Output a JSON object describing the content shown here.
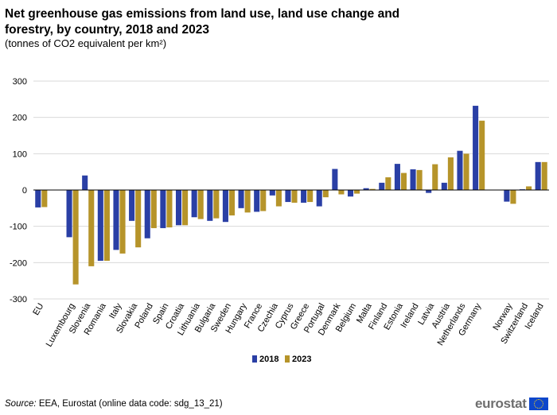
{
  "header": {
    "title": "Net greenhouse gas emissions from land use, land use change and forestry, by country, 2018 and 2023",
    "subtitle": "(tonnes of CO2 equivalent per km²)"
  },
  "footer": {
    "source_label": "Source:",
    "source_text": " EEA, Eurostat (online data code: sdg_13_21)",
    "logo_text": "eurostat"
  },
  "colors": {
    "s2018": "#2a3fa5",
    "s2023": "#b6942a",
    "grid": "#d9d9d9",
    "axis": "#000000"
  },
  "chart_data": {
    "type": "bar",
    "title": "Net greenhouse gas emissions from land use, land use change and forestry, by country, 2018 and 2023",
    "subtitle": "(tonnes of CO2 equivalent per km²)",
    "xlabel": "",
    "ylabel": "",
    "ylim": [
      -300,
      300
    ],
    "yticks": [
      300,
      200,
      100,
      0,
      -100,
      -200,
      -300
    ],
    "grid": true,
    "legend_position": "bottom-center",
    "categories": [
      "EU",
      "",
      "Luxembourg",
      "Slovenia",
      "Romania",
      "Italy",
      "Slovakia",
      "Poland",
      "Spain",
      "Croatia",
      "Lithuania",
      "Bulgaria",
      "Sweden",
      "Hungary",
      "France",
      "Czechia",
      "Cyprus",
      "Greece",
      "Portugal",
      "Denmark",
      "Belgium",
      "Malta",
      "Finland",
      "Estonia",
      "Ireland",
      "Latvia",
      "Austria",
      "Netherlands",
      "Germany",
      "",
      "Norway",
      "Switzerland",
      "Iceland"
    ],
    "series": [
      {
        "name": "2018",
        "values": [
          -48,
          null,
          -130,
          40,
          -195,
          -165,
          -85,
          -133,
          -105,
          -97,
          -75,
          -85,
          -88,
          -50,
          -60,
          -15,
          -33,
          -35,
          -45,
          58,
          -18,
          5,
          20,
          72,
          57,
          -8,
          20,
          108,
          232,
          null,
          -32,
          2,
          77
        ]
      },
      {
        "name": "2023",
        "values": [
          -47,
          null,
          -260,
          -210,
          -195,
          -175,
          -158,
          -105,
          -103,
          -97,
          -80,
          -78,
          -70,
          -62,
          -58,
          -45,
          -35,
          -33,
          -20,
          -12,
          -10,
          3,
          35,
          47,
          55,
          71,
          90,
          100,
          191,
          null,
          -38,
          10,
          77
        ]
      }
    ]
  }
}
